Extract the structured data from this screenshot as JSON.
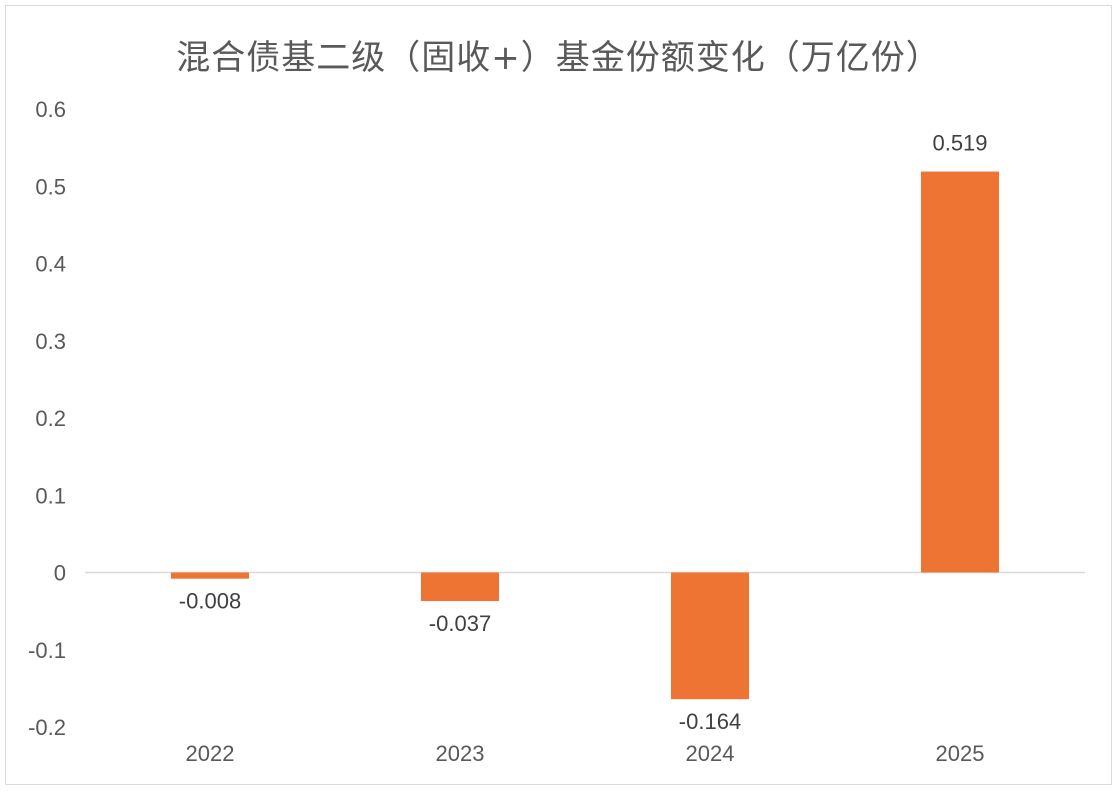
{
  "chart_data": {
    "type": "bar",
    "title": "混合债基二级（固收+）基金份额变化（万亿份）",
    "categories": [
      "2022",
      "2023",
      "2024",
      "2025"
    ],
    "values": [
      -0.008,
      -0.037,
      -0.164,
      0.519
    ],
    "data_labels": [
      "-0.008",
      "-0.037",
      "-0.164",
      "0.519"
    ],
    "y_ticks": [
      "0.6",
      "0.5",
      "0.4",
      "0.3",
      "0.2",
      "0.1",
      "0",
      "-0.1",
      "-0.2"
    ],
    "ylim": [
      -0.2,
      0.6
    ],
    "grid": false,
    "legend": "none",
    "bar_color": "#ED7433"
  }
}
